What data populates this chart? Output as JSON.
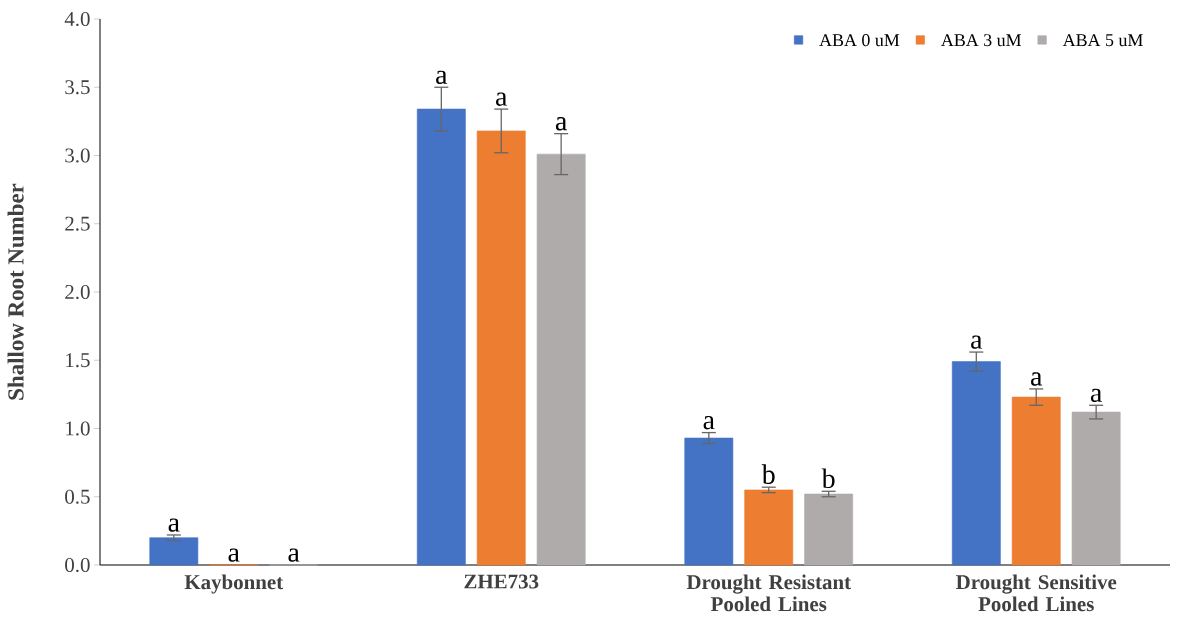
{
  "chart_data": {
    "type": "bar",
    "ylabel": "Shallow Root Number",
    "categories": [
      "Kaybonnet",
      "ZHE733",
      "Drought Resistant Pooled Lines",
      "Drought Sensitive Pooled Lines"
    ],
    "series": [
      {
        "name": "ABA 0 uM",
        "color": "#4472c4",
        "values": [
          0.2,
          3.34,
          0.93,
          1.49
        ],
        "errors": [
          0.02,
          0.16,
          0.04,
          0.07
        ],
        "value_labels": [
          "a",
          "a",
          "a",
          "a"
        ]
      },
      {
        "name": "ABA 3 uM",
        "color": "#ed7d31",
        "values": [
          0,
          3.18,
          0.55,
          1.23
        ],
        "errors": [
          null,
          0.16,
          0.02,
          0.06
        ],
        "value_labels": [
          "a",
          "a",
          "b",
          "a"
        ]
      },
      {
        "name": "ABA 5 uM",
        "color": "#afabab",
        "values": [
          0,
          3.01,
          0.52,
          1.12
        ],
        "errors": [
          null,
          0.15,
          0.02,
          0.05
        ],
        "value_labels": [
          "a",
          "a",
          "b",
          "a"
        ]
      }
    ],
    "ylim": [
      0,
      4
    ],
    "yticks": [
      {
        "value": 0,
        "label": "0.0"
      },
      {
        "value": 0.5,
        "label": "0.5"
      },
      {
        "value": 1,
        "label": "1.0"
      },
      {
        "value": 1.5,
        "label": "1.5"
      },
      {
        "value": 2,
        "label": "2.0"
      },
      {
        "value": 2.5,
        "label": "2.5"
      },
      {
        "value": 3,
        "label": "3.0"
      },
      {
        "value": 3.5,
        "label": "3.5"
      },
      {
        "value": 4,
        "label": "4.0"
      }
    ],
    "legend": "top right",
    "grid": false
  }
}
